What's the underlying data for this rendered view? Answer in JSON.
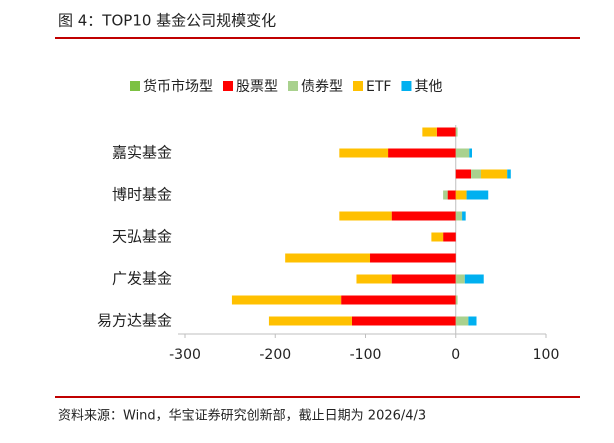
{
  "chart_data": {
    "type": "bar",
    "orientation": "horizontal",
    "stacked": true,
    "title": "图 4：TOP10 基金公司规模变化",
    "source": "资料来源：Wind，华宝证券研究创新部，截止日期为 2026/4/3",
    "categories": [
      null,
      "嘉实基金",
      null,
      "博时基金",
      null,
      "天弘基金",
      null,
      "广发基金",
      null,
      "易方达基金"
    ],
    "series": [
      {
        "name": "货币市场型",
        "color": "#7cc142",
        "values": [
          0,
          0,
          0,
          0,
          0,
          0,
          0,
          0,
          0,
          0
        ]
      },
      {
        "name": "股票型",
        "color": "#ff0000",
        "values": [
          -21,
          -75,
          17,
          -9,
          -71,
          -14,
          -95,
          -71,
          -127,
          -115
        ]
      },
      {
        "name": "债券型",
        "color": "#a9d18e",
        "values": [
          2,
          15,
          11,
          -5,
          7,
          0,
          0,
          10,
          2,
          14
        ]
      },
      {
        "name": "ETF",
        "color": "#ffc000",
        "values": [
          -16,
          -54,
          29,
          12,
          -58,
          -13,
          -94,
          -39,
          -121,
          -92
        ]
      },
      {
        "name": "其他",
        "color": "#00b0f0",
        "values": [
          0,
          3,
          4,
          24,
          4,
          0,
          0,
          21,
          0,
          9
        ]
      }
    ],
    "xlim": [
      -300,
      100
    ],
    "xticks": [
      -300,
      -200,
      -100,
      0,
      100
    ]
  }
}
